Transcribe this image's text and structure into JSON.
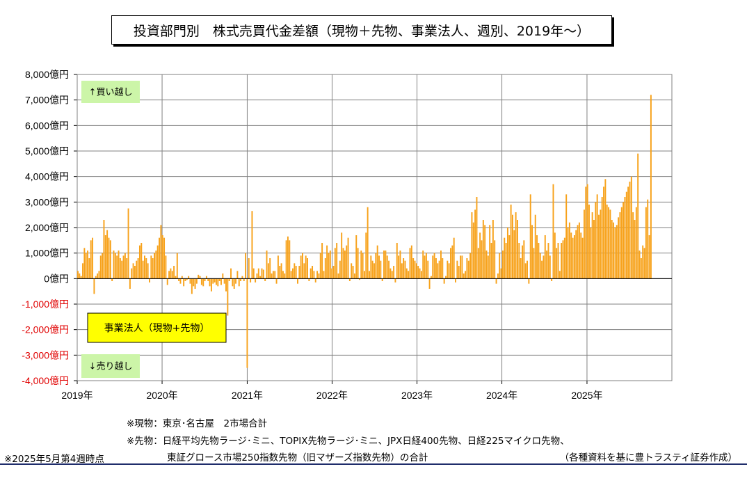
{
  "title": "投資部門別　株式売買代金差額（現物＋先物、事業法人、週別、2019年～）",
  "notes": {
    "spot": "※現物：東京･名古屋　2市場合計",
    "futures_line1": "※先物：日経平均先物ラージ･ミニ、TOPIX先物ラージ･ミニ、JPX日経400先物、日経225マイクロ先物、",
    "futures_line2": "東証グロース市場250指数先物（旧マザーズ指数先物）の合計",
    "as_of": "※2025年5月第4週時点",
    "source": "（各種資料を基に豊トラスティ証券作成）"
  },
  "chart_data": {
    "type": "bar",
    "x_type": "date",
    "frequency": "weekly",
    "ylim": [
      -4000,
      8000
    ],
    "yticks": [
      {
        "value": 8000,
        "label": "8,000億円"
      },
      {
        "value": 7000,
        "label": "7,000億円"
      },
      {
        "value": 6000,
        "label": "6,000億円"
      },
      {
        "value": 5000,
        "label": "5,000億円"
      },
      {
        "value": 4000,
        "label": "4,000億円"
      },
      {
        "value": 3000,
        "label": "3,000億円"
      },
      {
        "value": 2000,
        "label": "2,000億円"
      },
      {
        "value": 1000,
        "label": "1,000億円"
      },
      {
        "value": 0,
        "label": "0億円"
      },
      {
        "value": -1000,
        "label": "-1,000億円"
      },
      {
        "value": -2000,
        "label": "-2,000億円"
      },
      {
        "value": -3000,
        "label": "-3,000億円"
      },
      {
        "value": -4000,
        "label": "-4,000億円"
      }
    ],
    "xticks": [
      "2019年",
      "2020年",
      "2021年",
      "2022年",
      "2023年",
      "2024年",
      "2025年"
    ],
    "grid": true,
    "annotations": {
      "buy": "↑買い越し",
      "sell": "↓売り越し",
      "series_label": "事業法人（現物+先物）"
    },
    "colors": {
      "bar": "#F7A21B",
      "positive_label": "#000000",
      "negative_label": "#E00000",
      "annotation_box": "#CCF5A8",
      "series_box": "#FFFF00",
      "grid": "#808080"
    },
    "series": [
      {
        "start": "2019-01-04",
        "values": [
          300,
          200,
          100,
          600,
          1200,
          1000,
          1100,
          800,
          1500,
          1600,
          -600,
          100,
          200,
          300,
          900,
          1000,
          2300,
          1700,
          1900,
          1600,
          1500,
          -100,
          1100,
          1000,
          900,
          1100,
          800,
          700,
          900,
          1000,
          800,
          2750,
          -400,
          400,
          600,
          500,
          700,
          800,
          1300,
          1400,
          700,
          900,
          800,
          600,
          -150,
          900,
          800,
          1000,
          1100,
          1300,
          1600,
          2100,
          1700,
          1600,
          900,
          -250,
          300,
          400,
          300,
          500,
          100,
          1000,
          -100,
          -200,
          100,
          -300,
          -100,
          -50,
          100,
          -200,
          -600,
          -300,
          -400,
          -200,
          150,
          100,
          -250,
          -300,
          -100,
          100,
          -100,
          -300,
          -500,
          -200,
          -150,
          -250,
          -300,
          -100,
          -250,
          200,
          -200,
          -500,
          -1450,
          -100,
          400,
          -300,
          -400,
          -200,
          300,
          -300,
          -100,
          100,
          -100,
          1000,
          -3500,
          800,
          -150,
          2650,
          400,
          -150,
          200,
          400,
          100,
          400,
          350,
          -100,
          1100,
          600,
          800,
          200,
          300,
          300,
          -200,
          900,
          500,
          600,
          300,
          200,
          1500,
          1650,
          1500,
          300,
          400,
          600,
          500,
          -200,
          500,
          900,
          1000,
          600,
          900,
          800,
          -100,
          400,
          500,
          300,
          -150,
          300,
          200,
          1000,
          1400,
          300,
          800,
          1300,
          1000,
          1100,
          400,
          500,
          1200,
          1400,
          200,
          700,
          1800,
          1200,
          1100,
          1300,
          1600,
          -100,
          600,
          500,
          200,
          1700,
          1200,
          -50,
          1100,
          1000,
          300,
          1800,
          2800,
          300,
          900,
          700,
          600,
          1000,
          1300,
          900,
          700,
          -100,
          1100,
          1100,
          900,
          700,
          400,
          300,
          500,
          -150,
          1400,
          900,
          1100,
          600,
          800,
          700,
          400,
          300,
          1200,
          1300,
          800,
          700,
          600,
          500,
          400,
          300,
          1100,
          900,
          1000,
          700,
          -400,
          100,
          900,
          1000,
          800,
          600,
          700,
          1100,
          800,
          -200,
          100,
          700,
          600,
          1200,
          1300,
          1600,
          -150,
          700,
          500,
          900,
          900,
          200,
          300,
          800,
          700,
          1000,
          2600,
          2200,
          2700,
          3200,
          1200,
          1800,
          1500,
          2300,
          2100,
          1100,
          900,
          2100,
          1400,
          2300,
          1500,
          -200,
          200,
          1000,
          400,
          1100,
          1600,
          1400,
          2000,
          1700,
          2900,
          2500,
          1900,
          2600,
          2300,
          1400,
          800,
          1300,
          1500,
          600,
          700,
          -200,
          3300,
          2100,
          1200,
          2500,
          1700,
          1400,
          1000,
          700,
          900,
          1700,
          1100,
          1400,
          900,
          -100,
          3700,
          1800,
          1200,
          1400,
          300,
          1400,
          1500,
          1600,
          3300,
          2000,
          2200,
          1800,
          1600,
          1700,
          1900,
          2100,
          2200,
          1800,
          1600,
          2700,
          3600,
          3700,
          2900,
          2000,
          2600,
          2300,
          3000,
          3300,
          2500,
          2700,
          3200,
          3600,
          3900,
          2900,
          2800,
          2700,
          2300,
          2200,
          2000,
          2100,
          2400,
          2600,
          2800,
          3000,
          3200,
          3400,
          3600,
          3800,
          4000,
          2600,
          2300,
          2800,
          4900,
          1100,
          800,
          1300,
          1200,
          2800,
          3100,
          1700,
          7200
        ]
      }
    ]
  }
}
